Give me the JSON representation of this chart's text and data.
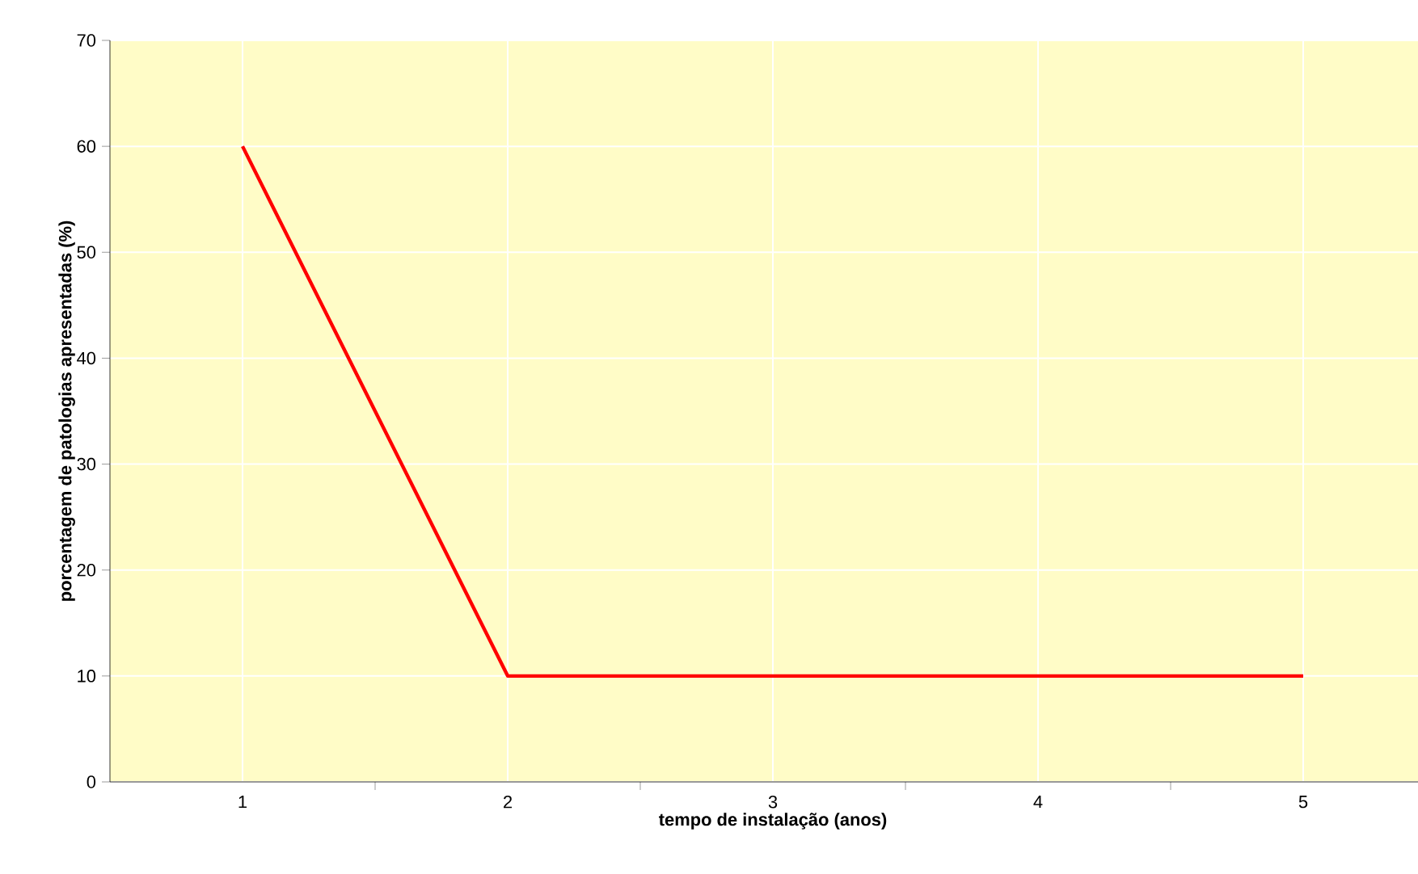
{
  "chart_data": {
    "type": "line",
    "xlabel": "tempo de instalação (anos)",
    "ylabel": "porcentagem de patologias apresentadas (%)",
    "categories": [
      "1",
      "2",
      "3",
      "4",
      "5"
    ],
    "series": [
      {
        "color": "#ff0000",
        "values": [
          60,
          10,
          10,
          10,
          10
        ]
      }
    ],
    "ylim": [
      0,
      70
    ],
    "yticks": [
      0,
      10,
      20,
      30,
      40,
      50,
      60,
      70
    ],
    "grid": true,
    "marker": "none",
    "line_style": "solid"
  }
}
